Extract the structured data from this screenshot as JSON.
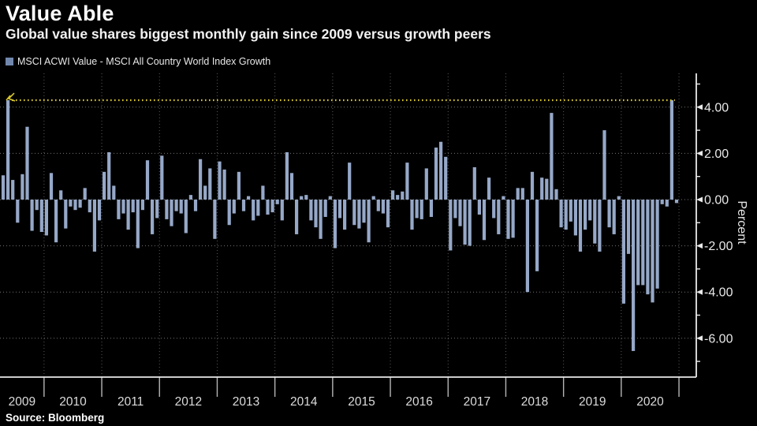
{
  "header": {
    "title": "Value Able",
    "subtitle": "Global value shares biggest monthly gain since 2009 versus growth peers"
  },
  "legend": {
    "label": "MSCI ACWI Value - MSCI All Country World Index Growth"
  },
  "source": {
    "text": "Source: Bloomberg"
  },
  "y_axis": {
    "title": "Percent",
    "tick_labels": [
      "4.00",
      "2.00",
      "0.00",
      "-2.00",
      "-4.00",
      "-6.00"
    ],
    "tick_values": [
      4,
      2,
      0,
      -2,
      -4,
      -6
    ],
    "minor_tick_values": [
      5,
      3,
      1,
      -1,
      -3,
      -5,
      -7
    ]
  },
  "x_axis": {
    "year_labels": [
      "2009",
      "2010",
      "2011",
      "2012",
      "2013",
      "2014",
      "2015",
      "2016",
      "2017",
      "2018",
      "2019",
      "2020"
    ]
  },
  "colors": {
    "background": "#000000",
    "bar": "#96a8c8",
    "legend_swatch": "#7187ae",
    "annotation": "#d8c62f",
    "axis": "#e9e9e9",
    "grid": "#9a9a9a",
    "year_grid": "#8a8a8a",
    "tick_text": "#e9e9e9",
    "year_text": "#dcdcdc",
    "separator": "#b5b5b5"
  },
  "chart_data": {
    "type": "bar",
    "title": "Value Able",
    "series_name": "MSCI ACWI Value - MSCI All Country World Index Growth",
    "ylabel": "Percent",
    "xlabel": "",
    "ylim": [
      -7.7,
      5.5
    ],
    "grid": true,
    "legend_position": "top-left",
    "start_month": "2009-04",
    "end_month": "2020-12",
    "unit": "percent",
    "annotation": {
      "type": "dotted-reference-line",
      "value": 4.3
    },
    "monthly_values": [
      1.05,
      4.3,
      0.85,
      -1.0,
      1.1,
      3.15,
      -1.35,
      -0.45,
      -1.4,
      -1.55,
      1.15,
      -1.85,
      0.4,
      -1.25,
      -0.3,
      -0.45,
      -0.35,
      0.5,
      -0.55,
      -2.25,
      -0.9,
      1.2,
      2.05,
      0.6,
      -0.85,
      -0.6,
      -1.3,
      -0.55,
      -2.1,
      -0.45,
      1.7,
      -1.5,
      -0.8,
      1.9,
      -0.85,
      -1.15,
      -0.5,
      -0.6,
      -1.45,
      0.2,
      -0.5,
      1.75,
      0.6,
      1.35,
      -1.7,
      1.65,
      1.3,
      -1.1,
      -0.6,
      1.2,
      -0.5,
      0.15,
      -0.9,
      -0.7,
      0.6,
      -0.65,
      -0.55,
      -0.2,
      -0.9,
      2.05,
      1.15,
      -1.5,
      0.15,
      0.2,
      -0.9,
      -1.2,
      -1.7,
      -0.75,
      0.15,
      -2.1,
      -0.8,
      -1.3,
      1.6,
      -1.1,
      -1.25,
      -1.0,
      -1.85,
      0.15,
      -0.5,
      -0.6,
      -1.2,
      0.4,
      0.2,
      0.35,
      1.6,
      -1.3,
      -0.8,
      -0.85,
      1.35,
      -0.75,
      2.25,
      2.5,
      1.85,
      -2.2,
      -0.8,
      -1.15,
      -1.95,
      -2.0,
      1.4,
      -0.65,
      -1.75,
      0.95,
      -0.8,
      -1.5,
      0.15,
      -1.7,
      -1.65,
      0.5,
      0.5,
      -4.0,
      1.2,
      -3.1,
      0.95,
      0.9,
      3.75,
      0.45,
      -1.2,
      -1.3,
      -0.95,
      -1.55,
      -2.25,
      -1.3,
      -0.9,
      -1.9,
      -2.25,
      3.0,
      -1.2,
      -1.5,
      0.15,
      -4.5,
      -2.35,
      -6.55,
      -3.7,
      -3.7,
      -4.1,
      -4.45,
      -3.85,
      -0.2,
      -0.3,
      4.3,
      -0.15
    ]
  }
}
